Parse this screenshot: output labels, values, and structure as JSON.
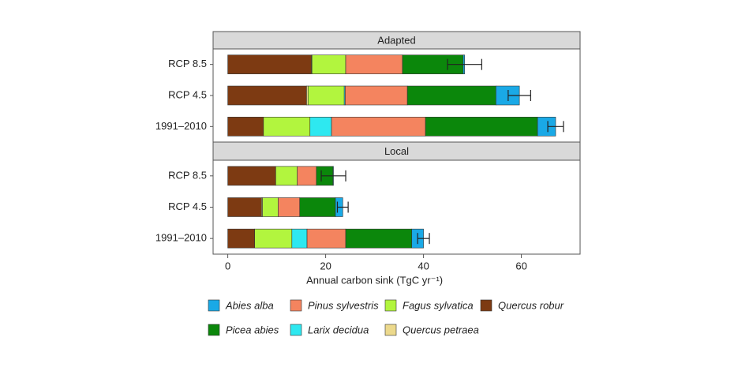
{
  "chart_data": [
    {
      "type": "bar",
      "orientation": "horizontal",
      "stacked": true,
      "title": "Adapted",
      "categories": [
        "RCP 8.5",
        "RCP 4.5",
        "1991–2010"
      ],
      "series": [
        {
          "name": "Quercus robur",
          "color": "#7d3a12",
          "values": [
            17.1,
            16.1,
            7.3
          ]
        },
        {
          "name": "Quercus petraea",
          "color": "#ecd98c",
          "values": [
            0.1,
            0.3,
            0
          ]
        },
        {
          "name": "Fagus sylvatica",
          "color": "#b2f53e",
          "values": [
            6.9,
            7.4,
            9.5
          ]
        },
        {
          "name": "Larix decidua",
          "color": "#2ee8f0",
          "values": [
            0,
            0.2,
            4.4
          ]
        },
        {
          "name": "Pinus sylvestris",
          "color": "#f4845f",
          "values": [
            11.6,
            12.7,
            19.2
          ]
        },
        {
          "name": "Picea abies",
          "color": "#0b870b",
          "values": [
            12.4,
            18.1,
            22.9
          ]
        },
        {
          "name": "Abies alba",
          "color": "#1aa9e6",
          "values": [
            0.3,
            4.8,
            3.7
          ]
        }
      ],
      "errors": [
        3.5,
        2.3,
        1.6
      ],
      "xlim": [
        -3,
        72
      ]
    },
    {
      "type": "bar",
      "orientation": "horizontal",
      "stacked": true,
      "title": "Local",
      "categories": [
        "RCP 8.5",
        "RCP 4.5",
        "1991–2010"
      ],
      "series": [
        {
          "name": "Quercus robur",
          "color": "#7d3a12",
          "values": [
            9.8,
            6.9,
            5.5
          ]
        },
        {
          "name": "Quercus petraea",
          "color": "#ecd98c",
          "values": [
            0,
            0.2,
            0
          ]
        },
        {
          "name": "Fagus sylvatica",
          "color": "#b2f53e",
          "values": [
            4.4,
            3.2,
            7.6
          ]
        },
        {
          "name": "Larix decidua",
          "color": "#2ee8f0",
          "values": [
            0,
            0,
            3.1
          ]
        },
        {
          "name": "Pinus sylvestris",
          "color": "#f4845f",
          "values": [
            3.9,
            4.4,
            7.9
          ]
        },
        {
          "name": "Picea abies",
          "color": "#0b870b",
          "values": [
            3.4,
            7.3,
            13.5
          ]
        },
        {
          "name": "Abies alba",
          "color": "#1aa9e6",
          "values": [
            0.1,
            1.5,
            2.4
          ]
        }
      ],
      "errors": [
        2.5,
        1.1,
        1.2
      ],
      "xlim": [
        -3,
        72
      ],
      "xticks": [
        0,
        20,
        40,
        60
      ],
      "xlabel": "Annual carbon sink (TgC yr⁻¹)"
    }
  ]
}
